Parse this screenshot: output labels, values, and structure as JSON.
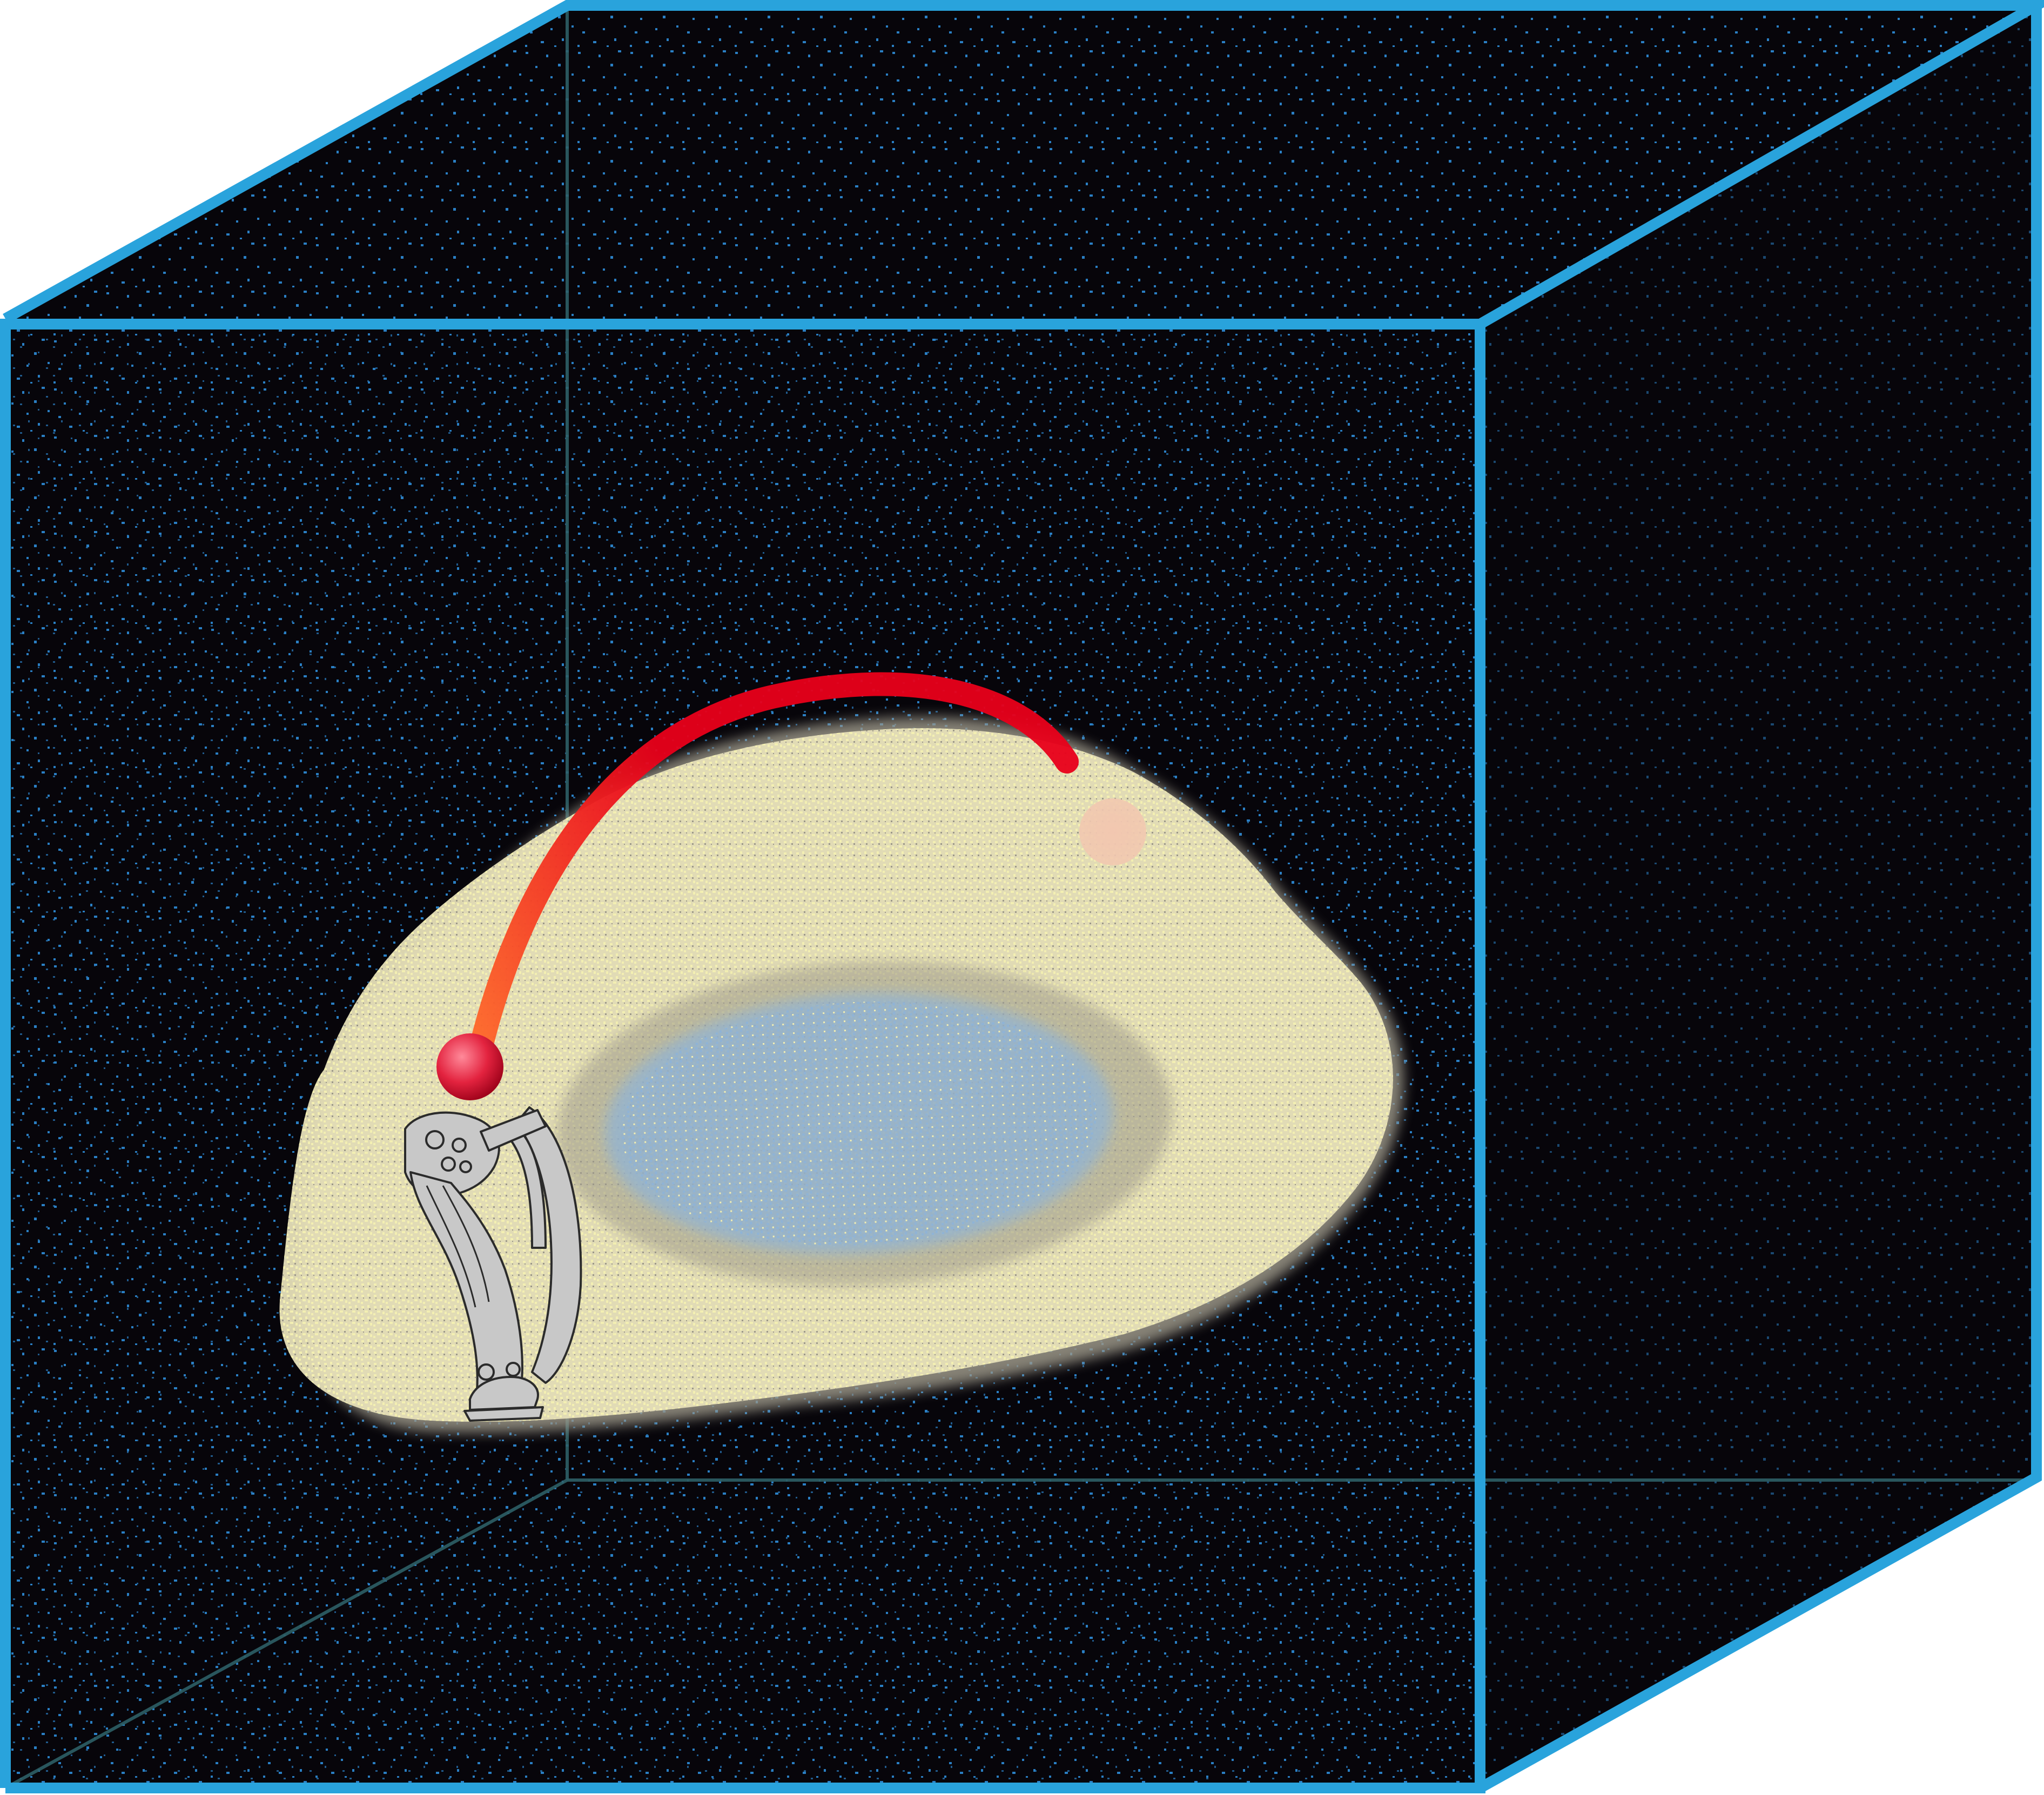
{
  "colors": {
    "background": "#ffffff",
    "box_edge": "#29a3dc",
    "box_edge_back": "#2e5f66",
    "box_interior": "#07050a",
    "dust_particles": "#2a7fc4",
    "cloud_fill": "#e6dfb8",
    "cloud_speckle": "#f3efb2",
    "cloud_shadow": "#9c9889",
    "cloud_core": "#8fb3d6",
    "ray_start": "#ff6a2a",
    "ray_end": "#e8001a",
    "ray_tip_ball": "#e3233f",
    "target_spot": "#f2c7b0",
    "controller_body": "#c8c8c8",
    "controller_outline": "#2b2b2b"
  },
  "icons": {
    "box": "wireframe-cube-icon",
    "cloud": "point-cloud-volume-icon",
    "ray": "selection-ray-icon",
    "ray_tip": "ray-cursor-sphere-icon",
    "target": "target-highlight-icon",
    "controller": "vr-hand-controller-icon"
  }
}
